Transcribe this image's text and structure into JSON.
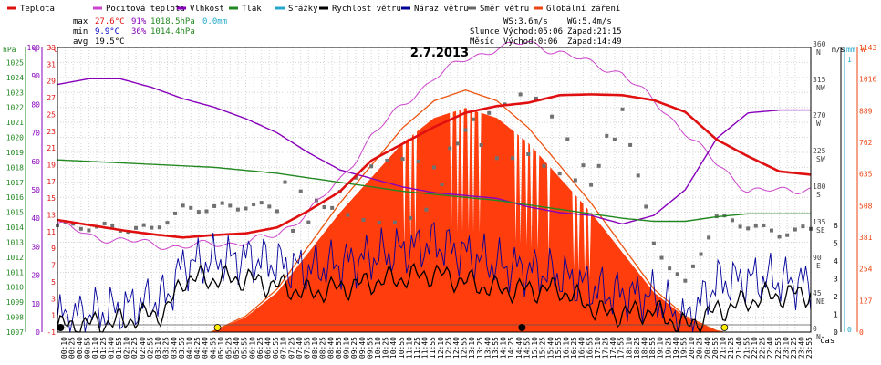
{
  "chart_data": {
    "type": "line",
    "title": "2.7.2013",
    "legend": [
      {
        "name": "Teplota",
        "color": "#e01010"
      },
      {
        "name": "Pocitová teplota",
        "color": "#cc44cc"
      },
      {
        "name": "Vlhkost",
        "color": "#8800bb"
      },
      {
        "name": "Tlak",
        "color": "#228822"
      },
      {
        "name": "Srážky",
        "color": "#22aacc"
      },
      {
        "name": "Rychlost větru",
        "color": "#000000"
      },
      {
        "name": "Náraz větru",
        "color": "#000099"
      },
      {
        "name": "Směr větru",
        "color": "#666666"
      },
      {
        "name": "Globální záření",
        "color": "#ee4411"
      }
    ],
    "stats": {
      "max": {
        "label": "max",
        "temp": "27.6°C",
        "hum": "91%",
        "press": "1018.5hPa",
        "rain": "0.0mm"
      },
      "min": {
        "label": "min",
        "temp": "9.9°C",
        "hum": "36%",
        "press": "1014.4hPa"
      },
      "avg": {
        "label": "avg",
        "temp": "19.5°C"
      }
    },
    "info": {
      "ws": "WS:3.6m/s",
      "wg": "WG:5.4m/s",
      "slunce_label": "Slunce",
      "slunce_rise": "Východ:05:06",
      "slunce_set": "Západ:21:15",
      "mesic_label": "Měsíc",
      "mesic_rise": "Východ:0:06",
      "mesic_set": "Západ:14:49"
    },
    "axes": {
      "hpa": {
        "label": "hPa",
        "color": "#228822",
        "ticks": [
          1007,
          1008,
          1009,
          1010,
          1011,
          1012,
          1013,
          1014,
          1015,
          1016,
          1017,
          1018,
          1019,
          1020,
          1021,
          1022,
          1023,
          1024,
          1025
        ],
        "range": [
          1007,
          1026
        ]
      },
      "pct": {
        "label": "%",
        "color": "#8800bb",
        "ticks": [
          0,
          10,
          20,
          30,
          40,
          50,
          60,
          70,
          80,
          90,
          100
        ],
        "range": [
          0,
          100
        ]
      },
      "temp": {
        "label": "°C",
        "color": "#e01010",
        "ticks": [
          -1,
          1,
          3,
          5,
          7,
          9,
          11,
          13,
          15,
          17,
          19,
          21,
          23,
          25,
          27,
          29,
          31,
          33
        ],
        "range": [
          -1,
          33
        ]
      },
      "dir": {
        "ticks": [
          {
            "v": 0,
            "l": "0",
            "d": "N"
          },
          {
            "v": 45,
            "l": "45",
            "d": "NE"
          },
          {
            "v": 90,
            "l": "90",
            "d": "E"
          },
          {
            "v": 135,
            "l": "135",
            "d": "SE"
          },
          {
            "v": 180,
            "l": "180",
            "d": "S"
          },
          {
            "v": 225,
            "l": "225",
            "d": "SW"
          },
          {
            "v": 270,
            "l": "270",
            "d": "W"
          },
          {
            "v": 315,
            "l": "315",
            "d": "NW"
          },
          {
            "v": 360,
            "l": "360",
            "d": "N"
          }
        ],
        "range": [
          0,
          360
        ]
      },
      "ms": {
        "label": "m/s",
        "color": "#000000",
        "ticks": [
          0,
          1,
          2,
          3,
          4,
          5,
          6
        ],
        "range": [
          0,
          16
        ]
      },
      "mm": {
        "label": "mm",
        "color": "#22aacc",
        "ticks": [
          0,
          1
        ],
        "range": [
          0,
          1
        ]
      },
      "w": {
        "label": "W",
        "color": "#ee4411",
        "ticks": [
          0,
          127,
          254,
          381,
          508,
          635,
          762,
          889,
          1016,
          1143
        ],
        "range": [
          0,
          1143
        ]
      },
      "x": {
        "label": "čas",
        "ticks": [
          "00:10",
          "00:25",
          "00:40",
          "00:55",
          "01:10",
          "01:25",
          "01:40",
          "01:55",
          "02:10",
          "02:25",
          "02:40",
          "02:55",
          "03:10",
          "03:25",
          "03:40",
          "03:55",
          "04:10",
          "04:25",
          "04:40",
          "04:55",
          "05:10",
          "05:25",
          "05:40",
          "05:55",
          "06:10",
          "06:25",
          "06:40",
          "06:55",
          "07:10",
          "07:25",
          "07:40",
          "07:55",
          "08:10",
          "08:25",
          "08:40",
          "08:55",
          "09:10",
          "09:25",
          "09:40",
          "09:55",
          "10:10",
          "10:25",
          "10:40",
          "10:55",
          "11:10",
          "11:25",
          "11:40",
          "11:55",
          "12:10",
          "12:25",
          "12:40",
          "12:55",
          "13:10",
          "13:25",
          "13:40",
          "13:55",
          "14:10",
          "14:25",
          "14:40",
          "14:55",
          "15:10",
          "15:25",
          "15:40",
          "15:55",
          "16:10",
          "16:25",
          "16:40",
          "16:55",
          "17:10",
          "17:25",
          "17:40",
          "17:55",
          "18:10",
          "18:25",
          "18:40",
          "18:55",
          "19:10",
          "19:25",
          "19:40",
          "19:55",
          "20:10",
          "20:25",
          "20:40",
          "20:55",
          "21:10",
          "21:25",
          "21:40",
          "21:55",
          "22:10",
          "22:25",
          "22:40",
          "22:55",
          "23:10",
          "23:25",
          "23:40",
          "23:55"
        ]
      }
    },
    "series": {
      "temperature": {
        "x": [
          0,
          1,
          2,
          3,
          4,
          5,
          6,
          7,
          8,
          9,
          10,
          11,
          12,
          13,
          14,
          15,
          16,
          17,
          18,
          19,
          20,
          21,
          22,
          23,
          24
        ],
        "y": [
          12.4,
          11.8,
          11.2,
          10.7,
          10.3,
          10.6,
          10.8,
          11.5,
          13.5,
          15.8,
          19.5,
          21.5,
          23.5,
          25.2,
          26.0,
          26.4,
          27.3,
          27.4,
          27.3,
          26.7,
          25.3,
          22.0,
          20.0,
          18.2,
          17.8
        ]
      },
      "feels_like": {
        "x": [
          0,
          1,
          2,
          3,
          4,
          5,
          6,
          7,
          8,
          9,
          10,
          11,
          12,
          13,
          14,
          15,
          16,
          17,
          18,
          19,
          20,
          21,
          22,
          23,
          24
        ],
        "y": [
          12.0,
          10.5,
          10.0,
          9.5,
          9.2,
          9.5,
          9.8,
          10.5,
          13.5,
          17.0,
          22.5,
          26.0,
          29.5,
          31.5,
          33.0,
          33.5,
          32.5,
          31.0,
          30.0,
          26.5,
          23.0,
          19.0,
          16.0,
          15.8,
          16.2
        ]
      },
      "humidity": {
        "x": [
          0,
          1,
          2,
          3,
          4,
          5,
          6,
          7,
          8,
          9,
          10,
          11,
          12,
          13,
          14,
          15,
          16,
          17,
          18,
          19,
          20,
          21,
          22,
          23,
          24
        ],
        "y": [
          87,
          89,
          89,
          86,
          82,
          79,
          75,
          70,
          63,
          57,
          54,
          51,
          49,
          48,
          47,
          44,
          42,
          41,
          38,
          41,
          50,
          68,
          77,
          78,
          78
        ]
      },
      "pressure": {
        "x": [
          0,
          1,
          2,
          3,
          4,
          5,
          6,
          7,
          8,
          9,
          10,
          11,
          12,
          13,
          14,
          15,
          16,
          17,
          18,
          19,
          20,
          21,
          22,
          23,
          24
        ],
        "y": [
          1018.5,
          1018.4,
          1018.3,
          1018.2,
          1018.1,
          1018.0,
          1017.8,
          1017.6,
          1017.3,
          1017.0,
          1016.7,
          1016.4,
          1016.2,
          1016.0,
          1015.8,
          1015.5,
          1015.2,
          1014.9,
          1014.6,
          1014.4,
          1014.4,
          1014.7,
          1014.9,
          1014.9,
          1014.9
        ]
      },
      "radiation_envelope": {
        "x": [
          4.9,
          6,
          7,
          8,
          9,
          10,
          11,
          12,
          13,
          14,
          15,
          16,
          17,
          18,
          19,
          20,
          21,
          21.3
        ],
        "y": [
          0,
          60,
          160,
          320,
          480,
          620,
          760,
          860,
          900,
          860,
          760,
          620,
          480,
          320,
          160,
          60,
          5,
          0
        ]
      },
      "wind_speed": {
        "x": [
          0,
          2,
          3.5,
          4,
          6,
          8,
          10,
          12,
          14,
          16,
          17.5,
          19,
          20,
          21,
          22.5,
          24
        ],
        "y": [
          0.3,
          0.6,
          1.2,
          3.0,
          3.0,
          2.2,
          2.8,
          3.3,
          2.4,
          2.4,
          1.0,
          1.2,
          0.3,
          1.2,
          2.0,
          2.2
        ]
      },
      "wind_gust": {
        "x": [
          0,
          2,
          3.5,
          4,
          6,
          8,
          10,
          12,
          14,
          16,
          17.5,
          19,
          20,
          21,
          22.5,
          24
        ],
        "y": [
          0.8,
          1.3,
          2.0,
          3.8,
          4.2,
          3.5,
          4.2,
          5.0,
          3.8,
          3.2,
          2.2,
          2.0,
          0.6,
          2.8,
          3.0,
          2.7
        ]
      },
      "wind_direction": {
        "x": [
          0,
          3,
          4,
          6,
          8,
          10,
          12,
          13,
          14,
          15,
          16,
          17,
          18,
          19,
          20,
          21,
          23,
          24
        ],
        "y": [
          135,
          130,
          155,
          160,
          155,
          175,
          185,
          260,
          250,
          265,
          230,
          190,
          285,
          110,
          60,
          145,
          125,
          130
        ]
      }
    },
    "markers": {
      "sunrise": 5.1,
      "sunset": 21.25,
      "moonrise": 0.1,
      "moonset": 14.8
    }
  }
}
